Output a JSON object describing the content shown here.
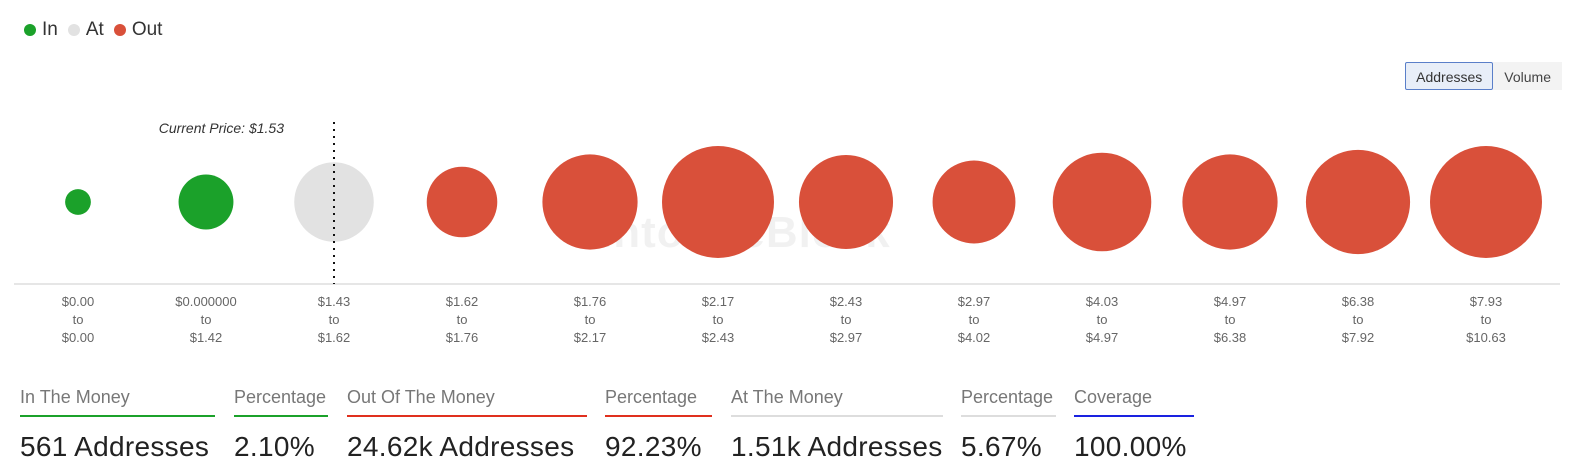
{
  "legend": [
    {
      "label": "In",
      "color": "#1ba12a"
    },
    {
      "label": "At",
      "color": "#e2e2e2"
    },
    {
      "label": "Out",
      "color": "#d9503a"
    }
  ],
  "toggle": {
    "addresses_label": "Addresses",
    "volume_label": "Volume",
    "selected": "Addresses"
  },
  "watermark": "IntoTheBlock",
  "chart_data": {
    "type": "bubble",
    "current_price_label": "Current Price: $1.53",
    "categories": [
      {
        "from": "$0.00",
        "to": "$0.00",
        "status": "In",
        "relative_size": 0.23
      },
      {
        "from": "$0.000000",
        "to": "$1.42",
        "status": "In",
        "relative_size": 0.49
      },
      {
        "from": "$1.43",
        "to": "$1.62",
        "status": "At",
        "relative_size": 0.71
      },
      {
        "from": "$1.62",
        "to": "$1.76",
        "status": "Out",
        "relative_size": 0.63
      },
      {
        "from": "$1.76",
        "to": "$2.17",
        "status": "Out",
        "relative_size": 0.85
      },
      {
        "from": "$2.17",
        "to": "$2.43",
        "status": "Out",
        "relative_size": 1.0
      },
      {
        "from": "$2.43",
        "to": "$2.97",
        "status": "Out",
        "relative_size": 0.84
      },
      {
        "from": "$2.97",
        "to": "$4.02",
        "status": "Out",
        "relative_size": 0.74
      },
      {
        "from": "$4.03",
        "to": "$4.97",
        "status": "Out",
        "relative_size": 0.88
      },
      {
        "from": "$4.97",
        "to": "$6.38",
        "status": "Out",
        "relative_size": 0.85
      },
      {
        "from": "$6.38",
        "to": "$7.92",
        "status": "Out",
        "relative_size": 0.93
      },
      {
        "from": "$7.93",
        "to": "$10.63",
        "status": "Out",
        "relative_size": 1.0
      }
    ],
    "range_connector": "to",
    "colors": {
      "In": "#1ba12a",
      "At": "#e2e2e2",
      "Out": "#d9503a"
    }
  },
  "stats": [
    {
      "label": "In The Money",
      "value": "561 Addresses",
      "color": "#1ba12a"
    },
    {
      "label": "Percentage",
      "value": "2.10%",
      "color": "#1ba12a"
    },
    {
      "label": "Out Of The Money",
      "value": "24.62k Addresses",
      "color": "#e0301e"
    },
    {
      "label": "Percentage",
      "value": "92.23%",
      "color": "#e0301e"
    },
    {
      "label": "At The Money",
      "value": "1.51k Addresses",
      "color": "#dddddd"
    },
    {
      "label": "Percentage",
      "value": "5.67%",
      "color": "#dddddd"
    },
    {
      "label": "Coverage",
      "value": "100.00%",
      "color": "#1a22e0"
    }
  ]
}
